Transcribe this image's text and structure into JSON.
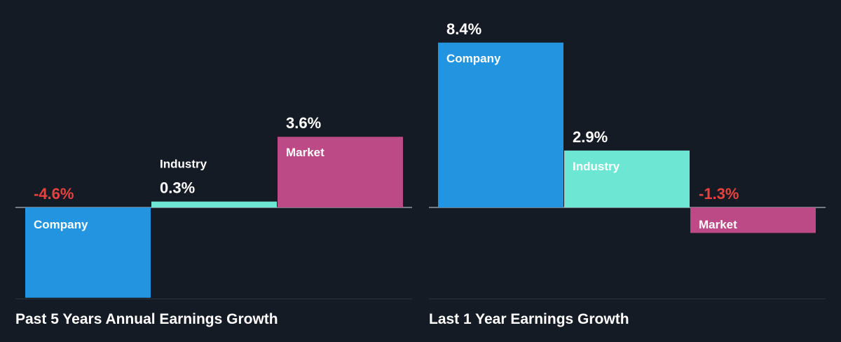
{
  "colors": {
    "background": "#151b24",
    "company": "#2394e0",
    "industry": "#6ee6d4",
    "market": "#bb4a86",
    "positive_text": "#ffffff",
    "negative_text": "#e8423f",
    "bar_label": "#ffffff",
    "outside_label": "#ffffff",
    "zero_line": "#ffffff",
    "rule": "#2c3440"
  },
  "panels": [
    {
      "title": "Past 5 Years Annual Earnings Growth"
    },
    {
      "title": "Last 1 Year Earnings Growth"
    }
  ],
  "chart_data": [
    {
      "type": "bar",
      "title": "Past 5 Years Annual Earnings Growth",
      "categories": [
        "Company",
        "Industry",
        "Market"
      ],
      "values": [
        -4.6,
        0.3,
        3.6
      ],
      "value_labels": [
        "-4.6%",
        "0.3%",
        "3.6%"
      ],
      "unit": "%"
    },
    {
      "type": "bar",
      "title": "Last 1 Year Earnings Growth",
      "categories": [
        "Company",
        "Industry",
        "Market"
      ],
      "values": [
        8.4,
        2.9,
        -1.3
      ],
      "value_labels": [
        "8.4%",
        "2.9%",
        "-1.3%"
      ],
      "unit": "%"
    }
  ]
}
